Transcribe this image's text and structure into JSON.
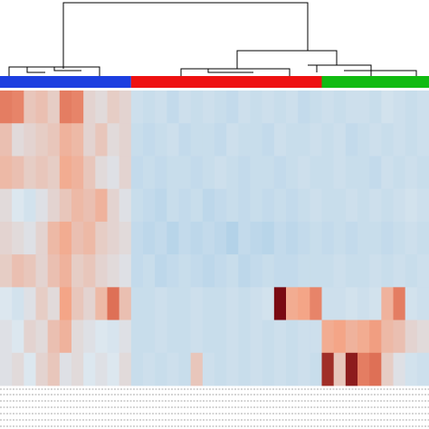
{
  "chart_data": {
    "type": "heatmap",
    "zlim": [
      -1,
      3
    ],
    "colorscale": [
      "#a9cde6",
      "#dce7ef",
      "#f4a587",
      "#d9634a",
      "#7a0a12"
    ],
    "groups": [
      {
        "color": "#1d3fe0",
        "span": 11
      },
      {
        "color": "#ee1111",
        "span": 16
      },
      {
        "color": "#11bb11",
        "span": 9
      }
    ],
    "values": [
      [
        1.6,
        1.5,
        0.5,
        0.6,
        0.4,
        1.6,
        1.5,
        0.3,
        0.2,
        0.4,
        0.3,
        -0.3,
        -0.4,
        -0.3,
        -0.5,
        -0.3,
        -0.4,
        -0.3,
        -0.4,
        -0.5,
        -0.3,
        -0.4,
        -0.3,
        -0.4,
        -0.3,
        -0.5,
        -0.4,
        -0.3,
        -0.4,
        -0.3,
        -0.3,
        -0.4,
        -0.2,
        -0.3,
        -0.4,
        -0.3
      ],
      [
        0.6,
        0.2,
        0.3,
        0.4,
        0.5,
        0.8,
        0.7,
        0.3,
        0.5,
        0.2,
        0.3,
        -0.4,
        -0.5,
        -0.4,
        -0.3,
        -0.5,
        -0.4,
        -0.4,
        -0.5,
        -0.3,
        -0.4,
        -0.4,
        -0.5,
        -0.3,
        -0.4,
        -0.4,
        -0.3,
        -0.4,
        -0.3,
        -0.5,
        -0.4,
        -0.3,
        -0.4,
        -0.3,
        -0.4,
        -0.3
      ],
      [
        0.7,
        0.6,
        0.4,
        0.5,
        0.4,
        0.9,
        0.8,
        0.5,
        0.2,
        0.1,
        0.3,
        -0.5,
        -0.4,
        -0.5,
        -0.4,
        -0.4,
        -0.5,
        -0.4,
        -0.3,
        -0.4,
        -0.5,
        -0.4,
        -0.4,
        -0.5,
        -0.4,
        -0.3,
        -0.4,
        -0.4,
        -0.3,
        -0.4,
        -0.4,
        -0.5,
        -0.3,
        -0.4,
        -0.3,
        -0.4
      ],
      [
        0.2,
        0.0,
        -0.2,
        0.1,
        0.3,
        0.5,
        0.7,
        0.6,
        0.8,
        0.3,
        0.1,
        -0.4,
        -0.5,
        -0.6,
        -0.4,
        -0.5,
        -0.4,
        -0.6,
        -0.5,
        -0.4,
        -0.5,
        -0.4,
        -0.5,
        -0.4,
        -0.5,
        -0.4,
        -0.3,
        -0.4,
        -0.4,
        -0.3,
        -0.4,
        -0.3,
        -0.4,
        -0.3,
        -0.2,
        -0.3
      ],
      [
        0.3,
        0.2,
        0.1,
        0.3,
        0.7,
        0.9,
        0.6,
        0.7,
        0.4,
        0.3,
        0.2,
        -0.5,
        -0.6,
        -0.5,
        -0.7,
        -0.5,
        -0.6,
        -0.5,
        -0.6,
        -0.8,
        -0.5,
        -0.6,
        -0.7,
        -0.5,
        -0.6,
        -0.5,
        -0.4,
        -0.5,
        -0.4,
        -0.5,
        -0.4,
        -0.4,
        -0.5,
        -0.4,
        -0.3,
        -0.4
      ],
      [
        0.4,
        0.6,
        0.5,
        0.3,
        0.6,
        0.8,
        0.4,
        0.5,
        0.3,
        0.2,
        0.1,
        -0.5,
        -0.4,
        -0.6,
        -0.5,
        -0.4,
        -0.5,
        -0.6,
        -0.5,
        -0.4,
        -0.6,
        -0.5,
        -0.4,
        -0.5,
        -0.5,
        -0.4,
        -0.4,
        -0.4,
        -0.3,
        -0.4,
        -0.4,
        -0.3,
        -0.4,
        -0.3,
        -0.4,
        -0.3
      ],
      [
        0.0,
        -0.2,
        0.1,
        0.4,
        0.2,
        1.0,
        0.5,
        0.3,
        0.7,
        1.8,
        0.6,
        -0.4,
        -0.4,
        -0.3,
        -0.4,
        -0.4,
        -0.3,
        -0.4,
        -0.4,
        -0.3,
        -0.4,
        -0.3,
        -0.2,
        3.0,
        0.9,
        1.0,
        1.5,
        -0.3,
        -0.3,
        -0.2,
        -0.3,
        -0.2,
        0.8,
        1.6,
        -0.2,
        -0.3
      ],
      [
        0.1,
        0.0,
        0.3,
        0.2,
        0.6,
        0.8,
        0.2,
        0.1,
        0.0,
        -0.1,
        0.1,
        -0.4,
        -0.4,
        -0.3,
        -0.4,
        -0.4,
        -0.3,
        -0.4,
        -0.4,
        -0.3,
        -0.4,
        -0.3,
        -0.4,
        -0.3,
        -0.4,
        -0.3,
        -0.3,
        0.9,
        1.0,
        0.8,
        0.9,
        1.1,
        0.7,
        0.6,
        0.3,
        0.2
      ],
      [
        0.1,
        0.2,
        0.0,
        0.3,
        0.5,
        0.1,
        0.2,
        0.0,
        0.1,
        0.0,
        0.2,
        -0.4,
        -0.3,
        -0.4,
        -0.3,
        -0.4,
        0.5,
        -0.3,
        -0.4,
        -0.3,
        -0.4,
        -0.3,
        -0.4,
        -0.3,
        -0.4,
        -0.3,
        -0.4,
        2.6,
        0.5,
        2.8,
        1.6,
        1.8,
        0.4,
        0.1,
        -0.2,
        -0.3
      ]
    ]
  }
}
